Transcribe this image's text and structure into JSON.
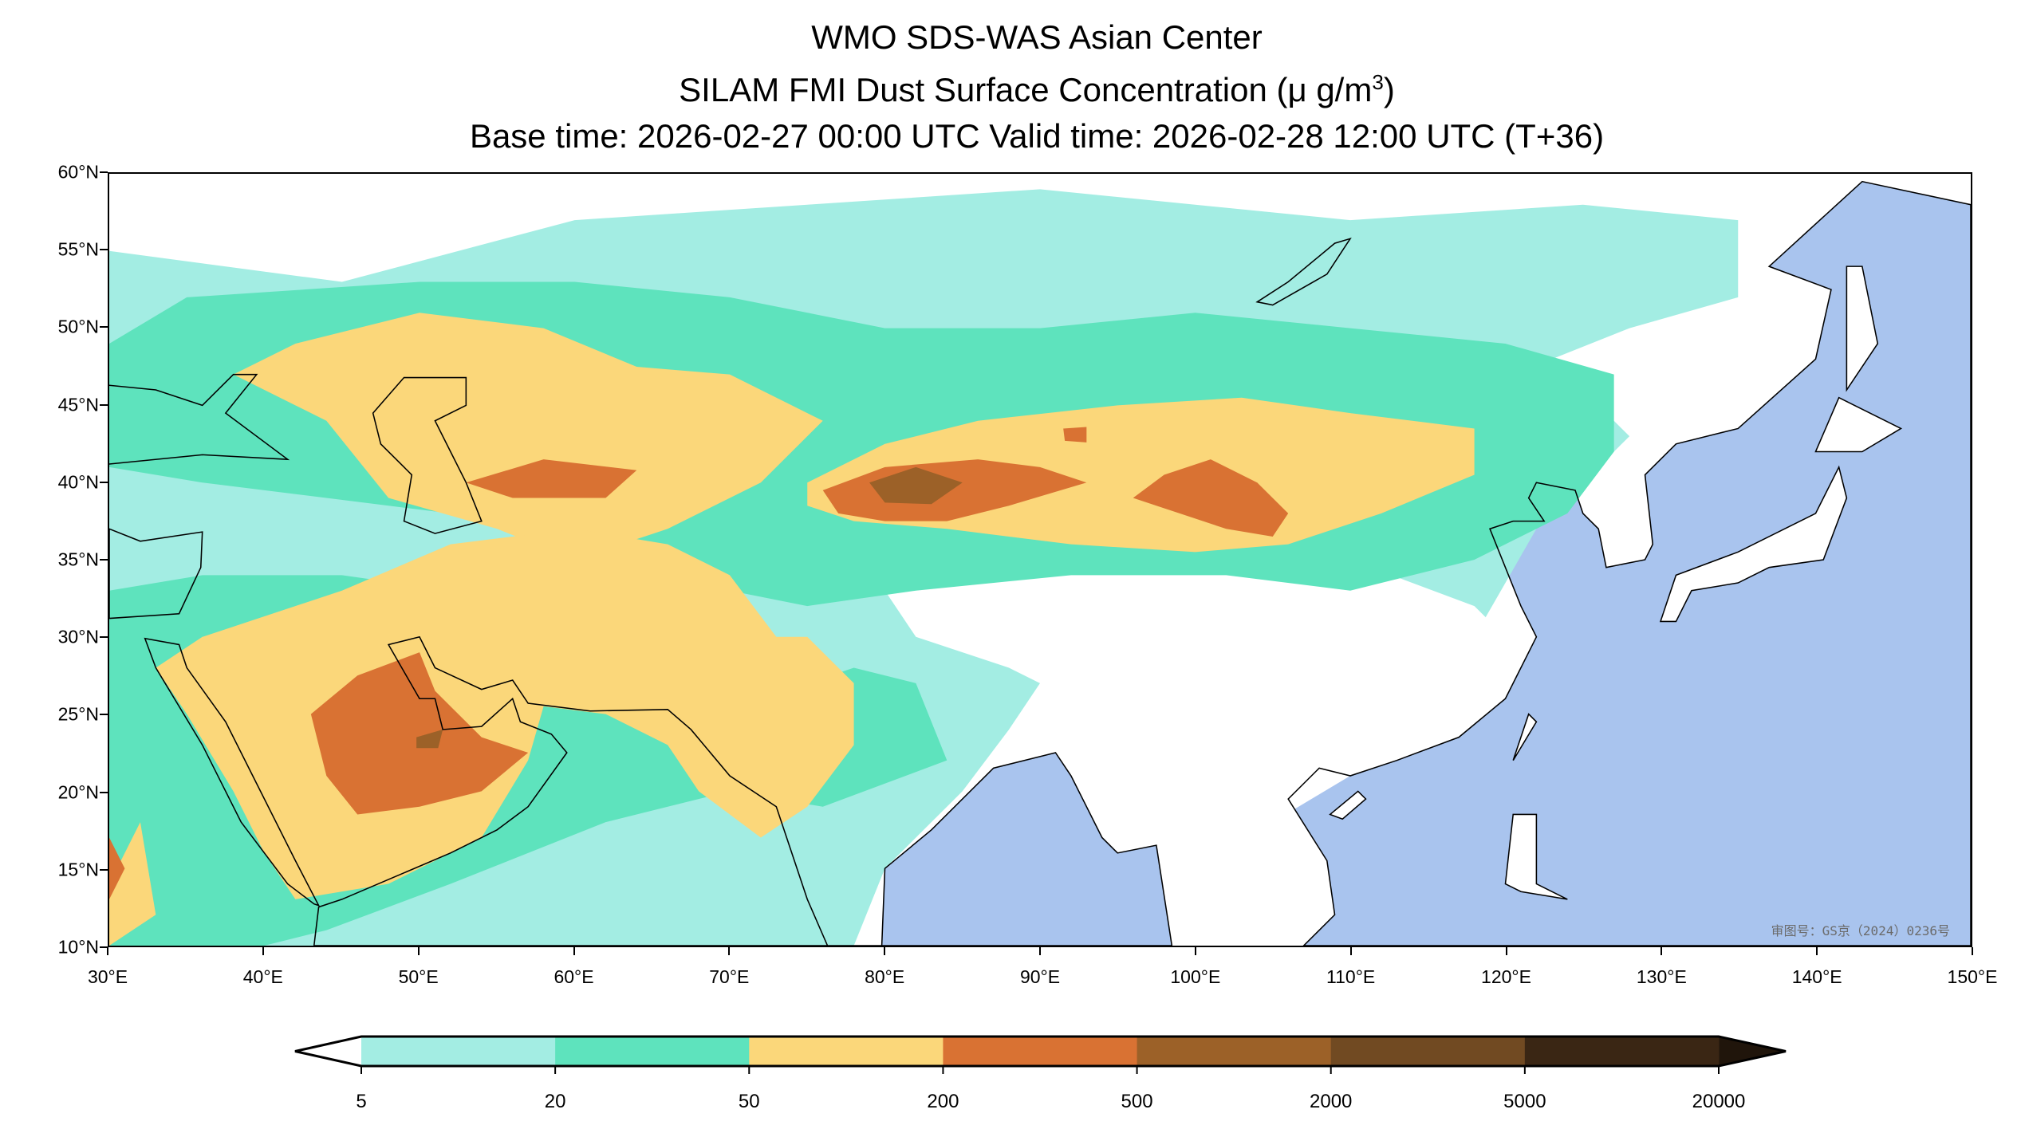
{
  "title": {
    "line1": "WMO SDS-WAS Asian Center",
    "line2_prefix": "SILAM FMI Dust Surface Concentration (",
    "line2_unit": "μ g/m",
    "line2_sup": "3",
    "line2_suffix": ")",
    "line3": "Base time: 2026-02-27 00:00 UTC Valid time: 2026-02-28 12:00 UTC (T+36)"
  },
  "map": {
    "lon_range": [
      30,
      150
    ],
    "lat_range": [
      10,
      60
    ],
    "x_ticks": [
      {
        "value": 30,
        "label": "30°E"
      },
      {
        "value": 40,
        "label": "40°E"
      },
      {
        "value": 50,
        "label": "50°E"
      },
      {
        "value": 60,
        "label": "60°E"
      },
      {
        "value": 70,
        "label": "70°E"
      },
      {
        "value": 80,
        "label": "80°E"
      },
      {
        "value": 90,
        "label": "90°E"
      },
      {
        "value": 100,
        "label": "100°E"
      },
      {
        "value": 110,
        "label": "110°E"
      },
      {
        "value": 120,
        "label": "120°E"
      },
      {
        "value": 130,
        "label": "130°E"
      },
      {
        "value": 140,
        "label": "140°E"
      },
      {
        "value": 150,
        "label": "150°E"
      }
    ],
    "y_ticks": [
      {
        "value": 10,
        "label": "10°N"
      },
      {
        "value": 15,
        "label": "15°N"
      },
      {
        "value": 20,
        "label": "20°N"
      },
      {
        "value": 25,
        "label": "25°N"
      },
      {
        "value": 30,
        "label": "30°N"
      },
      {
        "value": 35,
        "label": "35°N"
      },
      {
        "value": 40,
        "label": "40°N"
      },
      {
        "value": 45,
        "label": "45°N"
      },
      {
        "value": 50,
        "label": "50°N"
      },
      {
        "value": 55,
        "label": "55°N"
      },
      {
        "value": 60,
        "label": "60°N"
      }
    ],
    "watermark": "审图号：GS京（2024）0236号",
    "colors": {
      "ocean": "#a9c4ee",
      "land": "#ffffff"
    }
  },
  "colorbar": {
    "levels": [
      "5",
      "20",
      "50",
      "200",
      "500",
      "2000",
      "5000",
      "20000"
    ],
    "colors": [
      "#a3ede3",
      "#5ee3bd",
      "#fbd77a",
      "#d97233",
      "#9c6128",
      "#714a22",
      "#3a2614"
    ],
    "under_color": "#ffffff",
    "over_color": "#20150b"
  }
}
